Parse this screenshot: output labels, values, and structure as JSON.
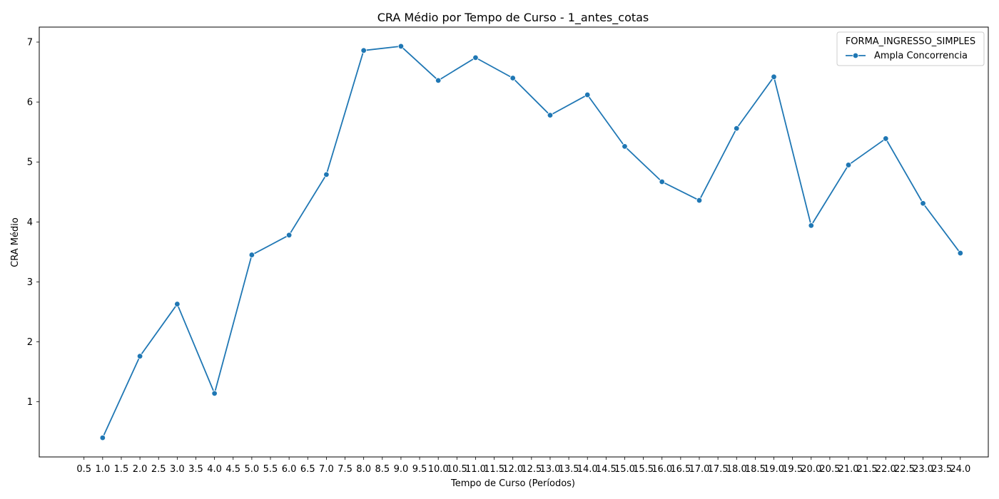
{
  "chart_data": {
    "type": "line",
    "title": "CRA Médio por Tempo de Curso - 1_antes_cotas",
    "xlabel": "Tempo de Curso (Períodos)",
    "ylabel": "CRA Médio",
    "xlim": [
      -0.7,
      24.75
    ],
    "ylim": [
      0.08,
      7.25
    ],
    "x_ticks": [
      "0.5",
      "1.0",
      "1.5",
      "2.0",
      "2.5",
      "3.0",
      "3.5",
      "4.0",
      "4.5",
      "5.0",
      "5.5",
      "6.0",
      "6.5",
      "7.0",
      "7.5",
      "8.0",
      "8.5",
      "9.0",
      "9.5",
      "10.0",
      "10.5",
      "11.0",
      "11.5",
      "12.0",
      "12.5",
      "13.0",
      "13.5",
      "14.0",
      "14.5",
      "15.0",
      "15.5",
      "16.0",
      "16.5",
      "17.0",
      "17.5",
      "18.0",
      "18.5",
      "19.0",
      "19.5",
      "20.0",
      "20.5",
      "21.0",
      "21.5",
      "22.0",
      "22.5",
      "23.0",
      "23.5",
      "24.0"
    ],
    "y_ticks": [
      1,
      2,
      3,
      4,
      5,
      6,
      7
    ],
    "grid": false,
    "legend": {
      "title": "FORMA_INGRESSO_SIMPLES",
      "placement": "top-right"
    },
    "series": [
      {
        "name": "Ampla Concorrencia",
        "color": "#1f77b4",
        "marker": "circle",
        "x": [
          1,
          2,
          3,
          4,
          5,
          6,
          7,
          8,
          9,
          10,
          11,
          12,
          13,
          14,
          15,
          16,
          17,
          18,
          19,
          20,
          21,
          22,
          23,
          24
        ],
        "y": [
          0.4,
          1.76,
          2.63,
          1.14,
          3.45,
          3.78,
          4.79,
          6.86,
          6.93,
          6.36,
          6.74,
          6.4,
          5.78,
          6.12,
          5.26,
          4.67,
          4.36,
          5.56,
          6.42,
          3.94,
          4.95,
          5.39,
          4.31,
          3.48
        ]
      }
    ]
  }
}
